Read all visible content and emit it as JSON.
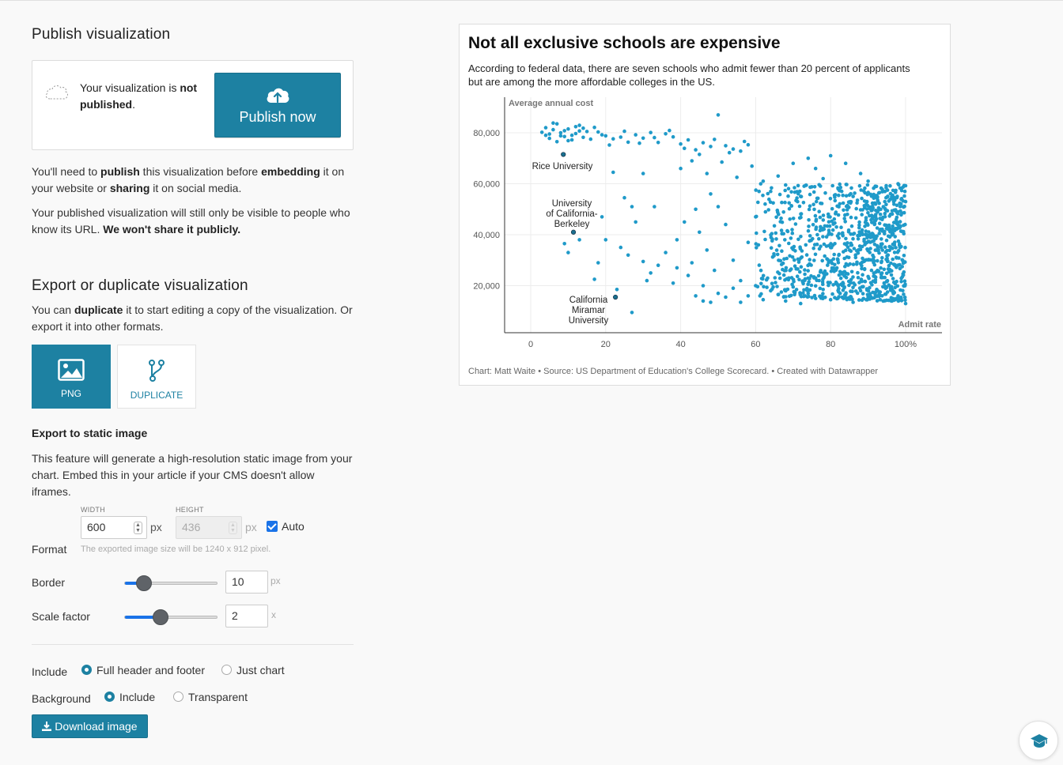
{
  "publish": {
    "title": "Publish visualization",
    "status_pre": "Your visualization is ",
    "status_bold": "not published",
    "status_post": ".",
    "button_label": "Publish now",
    "p1": [
      "You'll need to ",
      "publish",
      " this visualization before ",
      "embedding",
      " it on your website or ",
      "sharing",
      " it on social media."
    ],
    "p2_pre": "Your published visualization will still only be visible to people who know its URL. ",
    "p2_bold": "We won't share it publicly."
  },
  "export": {
    "title": "Export or duplicate visualization",
    "p3_pre": "You can ",
    "p3_bold": "duplicate",
    "p3_post": " it to start editing a copy of the visualization. Or export it into other formats.",
    "tiles": [
      {
        "label": "PNG",
        "icon": "image-icon"
      },
      {
        "label": "DUPLICATE",
        "icon": "fork-icon"
      }
    ],
    "static_title": "Export to static image",
    "static_desc": "This feature will generate a high-resolution static image from your chart. Embed this in your article if your CMS doesn't allow iframes.",
    "width_label": "WIDTH",
    "width_value": "600",
    "height_label": "HEIGHT",
    "height_value": "436",
    "px": "px",
    "auto_label": "Auto",
    "format_label": "Format",
    "size_hint": "The exported image size will be 1240 x 912 pixel.",
    "border_label": "Border",
    "border_value": "10",
    "border_unit": "px",
    "border_slider_fraction": 0.2,
    "scale_label": "Scale factor",
    "scale_value": "2",
    "scale_unit": "x",
    "scale_slider_fraction": 0.38,
    "include_label": "Include",
    "include_options": [
      "Full header and footer",
      "Just chart"
    ],
    "background_label": "Background",
    "background_options": [
      "Include",
      "Transparent"
    ],
    "download_label": "Download image"
  },
  "chart": {
    "title": "Not all exclusive schools are expensive",
    "description": "According to federal data, there are seven schools who admit fewer than 20 percent of applicants but are among the more affordable colleges in the US.",
    "footer": "Chart: Matt Waite • Source: US Department of Education's College Scorecard. • Created with Datawrapper"
  },
  "chart_data": {
    "type": "scatter",
    "ylabel": "Average annual cost",
    "xlabel": "Admit rate",
    "xlim": [
      0,
      100
    ],
    "ylim": [
      0,
      88000
    ],
    "x_ticks": [
      "0",
      "20",
      "40",
      "60",
      "80",
      "100%"
    ],
    "y_ticks": [
      "20,000",
      "40,000",
      "60,000",
      "80,000"
    ],
    "grid": true,
    "color": "#1f9ac9",
    "annotations": [
      {
        "label": "Rice University",
        "x": 8.7,
        "y": 71500
      },
      {
        "label": "University of California-Berkeley",
        "x": 11.4,
        "y": 41000
      },
      {
        "label": "California Miramar University",
        "x": 22.6,
        "y": 15500
      }
    ],
    "points": [
      [
        3,
        80200
      ],
      [
        4,
        82000
      ],
      [
        5,
        79500
      ],
      [
        6,
        81200
      ],
      [
        7,
        83500
      ],
      [
        8,
        80000
      ],
      [
        9,
        78500
      ],
      [
        10,
        81500
      ],
      [
        11,
        79000
      ],
      [
        12,
        82400
      ],
      [
        13,
        80700
      ],
      [
        14,
        78200
      ],
      [
        15,
        80500
      ],
      [
        5,
        77800
      ],
      [
        7,
        76500
      ],
      [
        9,
        80800
      ],
      [
        11,
        77200
      ],
      [
        13,
        82900
      ],
      [
        6,
        83800
      ],
      [
        8,
        78800
      ],
      [
        10,
        76900
      ],
      [
        12,
        79700
      ],
      [
        14,
        81800
      ],
      [
        16,
        77500
      ],
      [
        4,
        79000
      ],
      [
        18,
        80300
      ],
      [
        20,
        78800
      ],
      [
        22,
        77600
      ],
      [
        24,
        78300
      ],
      [
        26,
        76300
      ],
      [
        28,
        79200
      ],
      [
        30,
        77900
      ],
      [
        32,
        80100
      ],
      [
        34,
        76200
      ],
      [
        36,
        79600
      ],
      [
        38,
        78400
      ],
      [
        40,
        75600
      ],
      [
        42,
        77200
      ],
      [
        44,
        73300
      ],
      [
        46,
        76100
      ],
      [
        48,
        74600
      ],
      [
        50,
        87000
      ],
      [
        52,
        74900
      ],
      [
        54,
        73600
      ],
      [
        56,
        72800
      ],
      [
        58,
        75300
      ],
      [
        17,
        82100
      ],
      [
        19,
        79200
      ],
      [
        21,
        75200
      ],
      [
        25,
        80600
      ],
      [
        29,
        75900
      ],
      [
        33,
        78100
      ],
      [
        37,
        80900
      ],
      [
        41,
        73900
      ],
      [
        45,
        71500
      ],
      [
        49,
        77400
      ],
      [
        53,
        72200
      ],
      [
        57,
        76600
      ],
      [
        40,
        66000
      ],
      [
        43,
        69000
      ],
      [
        47,
        64000
      ],
      [
        51,
        68500
      ],
      [
        55,
        62500
      ],
      [
        59,
        66900
      ],
      [
        62,
        61000
      ],
      [
        64,
        57000
      ],
      [
        66,
        63000
      ],
      [
        68,
        59500
      ],
      [
        70,
        68000
      ],
      [
        72,
        55000
      ],
      [
        74,
        70000
      ],
      [
        76,
        66000
      ],
      [
        78,
        62000
      ],
      [
        80,
        71000
      ],
      [
        82,
        58000
      ],
      [
        84,
        68000
      ],
      [
        86,
        55000
      ],
      [
        88,
        64000
      ],
      [
        90,
        61000
      ],
      [
        92,
        52000
      ],
      [
        94,
        57000
      ],
      [
        96,
        48000
      ],
      [
        98,
        60000
      ],
      [
        100,
        53000
      ],
      [
        22,
        64500
      ],
      [
        30,
        64000
      ],
      [
        25,
        54500
      ],
      [
        27,
        51000
      ],
      [
        33,
        51000
      ],
      [
        28,
        45000
      ],
      [
        19,
        47000
      ],
      [
        20,
        38000
      ],
      [
        24,
        35000
      ],
      [
        26,
        32000
      ],
      [
        30,
        29500
      ],
      [
        32,
        25000
      ],
      [
        34,
        28000
      ],
      [
        18,
        29000
      ],
      [
        17,
        22500
      ],
      [
        23,
        18500
      ],
      [
        27,
        9500
      ],
      [
        31,
        22000
      ],
      [
        38,
        21000
      ],
      [
        36,
        33000
      ],
      [
        39,
        38000
      ],
      [
        41,
        45000
      ],
      [
        43,
        29000
      ],
      [
        45,
        41000
      ],
      [
        47,
        34000
      ],
      [
        49,
        26000
      ],
      [
        50,
        51000
      ],
      [
        52,
        44000
      ],
      [
        54,
        30000
      ],
      [
        56,
        22000
      ],
      [
        58,
        37000
      ],
      [
        60,
        47000
      ],
      [
        13,
        38000
      ],
      [
        9,
        36500
      ],
      [
        10,
        33000
      ],
      [
        39,
        27000
      ],
      [
        44,
        50000
      ],
      [
        48,
        56000
      ],
      [
        46,
        20000
      ],
      [
        42,
        24000
      ],
      [
        44,
        16000
      ],
      [
        46,
        14000
      ],
      [
        48,
        13500
      ],
      [
        50,
        17000
      ],
      [
        52,
        15500
      ],
      [
        54,
        19000
      ],
      [
        56,
        13500
      ],
      [
        58,
        16000
      ],
      [
        60,
        20000
      ],
      [
        62,
        14500
      ],
      [
        64,
        18000
      ],
      [
        66,
        16500
      ],
      [
        68,
        14000
      ],
      [
        70,
        19500
      ],
      [
        72,
        13000
      ],
      [
        74,
        17000
      ],
      [
        76,
        15000
      ],
      [
        78,
        18500
      ],
      [
        80,
        14500
      ],
      [
        82,
        20000
      ],
      [
        84,
        16500
      ],
      [
        86,
        13500
      ],
      [
        88,
        18000
      ],
      [
        90,
        15500
      ],
      [
        92,
        17500
      ],
      [
        94,
        14000
      ],
      [
        96,
        19000
      ],
      [
        98,
        16000
      ],
      [
        100,
        13000
      ]
    ],
    "dense_region": {
      "x_range": [
        60,
        100
      ],
      "y_range": [
        16000,
        62000
      ],
      "count": 950
    }
  }
}
